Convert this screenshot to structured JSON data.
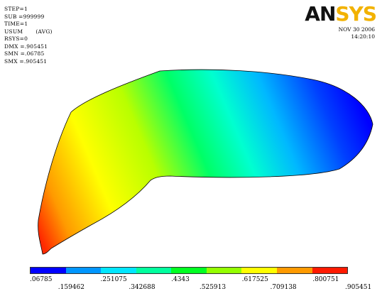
{
  "header": {
    "logo_text_dark": "AN",
    "logo_text_gold": "SYS",
    "date": "NOV 30 2006",
    "time": "14:20:10"
  },
  "info_lines": [
    "STEP=1",
    "SUB =999999",
    "TIME=1",
    "USUM       (AVG)",
    "RSYS=0",
    "DMX =.905451",
    "SMN =.06785",
    "SMX =.905451"
  ],
  "legend": {
    "colors": [
      "#0000ff",
      "#0096ff",
      "#00e6ff",
      "#00ff9e",
      "#00ff22",
      "#94ff00",
      "#ffff00",
      "#ff9a00",
      "#ff1a00"
    ],
    "labels_top": [
      ".06785",
      ".251075",
      ".4343",
      ".617525",
      ".800751"
    ],
    "labels_bottom": [
      ".159462",
      ".342688",
      ".525913",
      ".709138",
      ".905451"
    ]
  }
}
